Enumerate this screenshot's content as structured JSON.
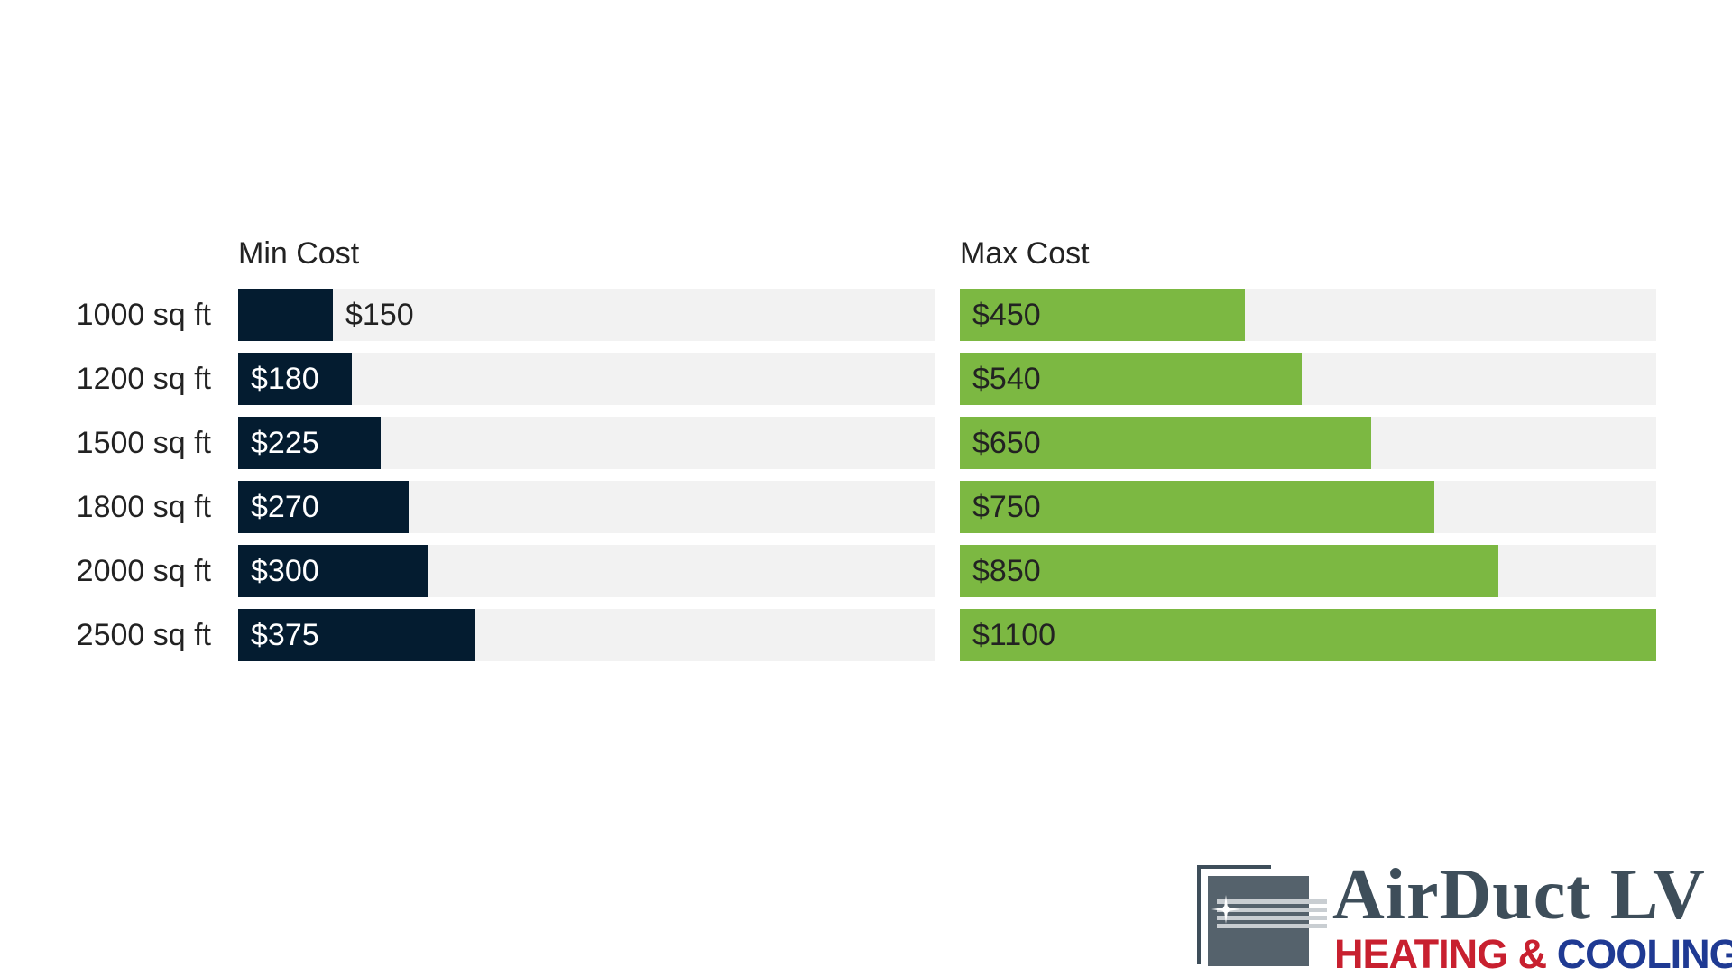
{
  "chart_data": {
    "type": "bar",
    "orientation": "horizontal",
    "categories": [
      "1000 sq ft",
      "1200 sq ft",
      "1500 sq ft",
      "1800 sq ft",
      "2000 sq ft",
      "2500 sq ft"
    ],
    "series": [
      {
        "name": "Min Cost",
        "values": [
          150,
          180,
          225,
          270,
          300,
          375
        ],
        "labels": [
          "$150",
          "$180",
          "$225",
          "$270",
          "$300",
          "$375"
        ],
        "color": "#041c30",
        "label_color_inside": "#ffffff",
        "label_color_outside": "#222222",
        "xlim": [
          0,
          1100
        ]
      },
      {
        "name": "Max Cost",
        "values": [
          450,
          540,
          650,
          750,
          850,
          1100
        ],
        "labels": [
          "$450",
          "$540",
          "$650",
          "$750",
          "$850",
          "$1100"
        ],
        "color": "#7cb842",
        "label_color_inside": "#222222",
        "label_color_outside": "#222222",
        "xlim": [
          0,
          1100
        ]
      }
    ],
    "track_color": "#f2f2f2",
    "grid": false,
    "legend": "none"
  },
  "logo": {
    "word": "AirDuct LV",
    "sub_red": "HEATING",
    "sub_amp": " & ",
    "sub_blue": "COOLING",
    "colors": {
      "slate": "#3e4e5a",
      "red": "#c8202f",
      "blue": "#1f3a93"
    }
  }
}
